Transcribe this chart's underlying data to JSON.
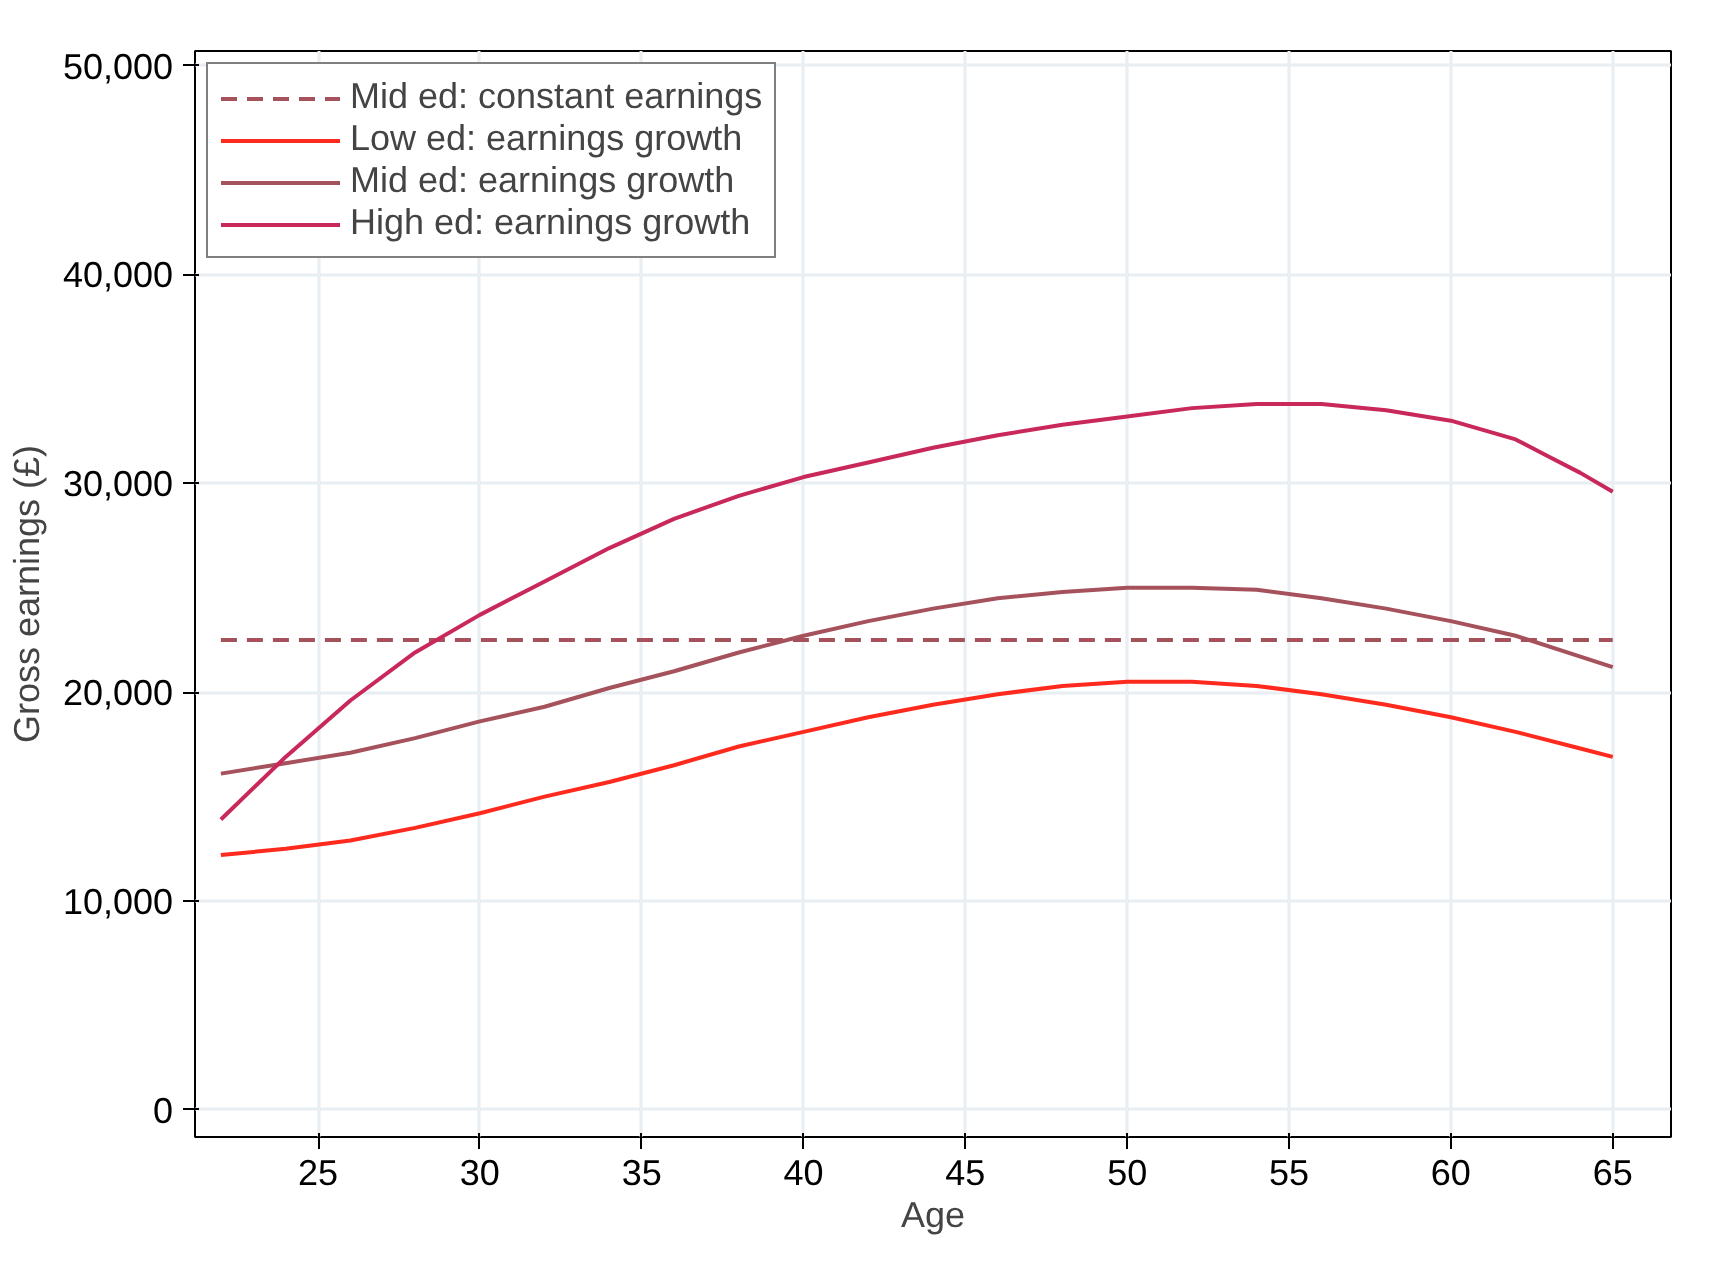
{
  "chart_data": {
    "type": "line",
    "xlabel": "Age",
    "ylabel": "Gross earnings (£)",
    "xlim": [
      21.2,
      66.8
    ],
    "ylim": [
      -1300,
      50700
    ],
    "xticks": [
      25,
      30,
      35,
      40,
      45,
      50,
      55,
      60,
      65
    ],
    "yticks": [
      {
        "value": 0,
        "label": "0"
      },
      {
        "value": 10000,
        "label": "10,000"
      },
      {
        "value": 20000,
        "label": "20,000"
      },
      {
        "value": 30000,
        "label": "30,000"
      },
      {
        "value": 40000,
        "label": "40,000"
      },
      {
        "value": 50000,
        "label": "50,000"
      }
    ],
    "grid": true,
    "legend": "top left",
    "series": [
      {
        "name": "Mid ed: constant earnings",
        "color": "#a5525c",
        "line_style": "dashed",
        "x": [
          22,
          65
        ],
        "values": [
          22500,
          22500
        ]
      },
      {
        "name": "Low ed: earnings growth",
        "color": "#ff2a1e",
        "line_style": "solid",
        "x": [
          22,
          24,
          26,
          28,
          30,
          32,
          34,
          36,
          38,
          40,
          42,
          44,
          46,
          48,
          50,
          52,
          54,
          56,
          58,
          60,
          62,
          64,
          65
        ],
        "values": [
          12200,
          12500,
          12900,
          13500,
          14200,
          15000,
          15700,
          16500,
          17400,
          18100,
          18800,
          19400,
          19900,
          20300,
          20500,
          20500,
          20300,
          19900,
          19400,
          18800,
          18100,
          17300,
          16900
        ]
      },
      {
        "name": "Mid ed: earnings growth",
        "color": "#a5525c",
        "line_style": "solid",
        "x": [
          22,
          24,
          26,
          28,
          30,
          32,
          34,
          36,
          38,
          40,
          42,
          44,
          46,
          48,
          50,
          52,
          54,
          56,
          58,
          60,
          62,
          64,
          65
        ],
        "values": [
          16100,
          16600,
          17100,
          17800,
          18600,
          19300,
          20200,
          21000,
          21900,
          22700,
          23400,
          24000,
          24500,
          24800,
          25000,
          25000,
          24900,
          24500,
          24000,
          23400,
          22700,
          21700,
          21200
        ]
      },
      {
        "name": "High ed: earnings growth",
        "color": "#c8285a",
        "line_style": "solid",
        "x": [
          22,
          24,
          26,
          28,
          30,
          32,
          34,
          36,
          38,
          40,
          42,
          44,
          46,
          48,
          50,
          52,
          54,
          56,
          58,
          60,
          62,
          63,
          64,
          65
        ],
        "values": [
          13900,
          16900,
          19600,
          21900,
          23700,
          25300,
          26900,
          28300,
          29400,
          30300,
          31000,
          31700,
          32300,
          32800,
          33200,
          33600,
          33800,
          33800,
          33500,
          33000,
          32100,
          31300,
          30500,
          29600
        ]
      }
    ]
  }
}
